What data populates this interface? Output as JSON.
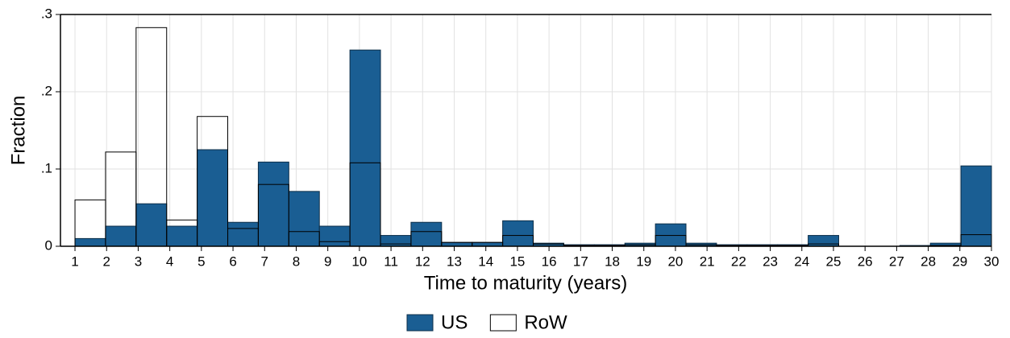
{
  "chart_data": {
    "type": "histogram",
    "xlabel": "Time to maturity (years)",
    "ylabel": "Fraction",
    "bins": [
      1,
      1.9667,
      2.9333,
      3.9,
      4.8667,
      5.8333,
      6.8,
      7.7667,
      8.7333,
      9.7,
      10.6667,
      11.6333,
      12.6,
      13.5667,
      14.5333,
      15.5,
      16.4667,
      17.4333,
      18.4,
      19.3667,
      20.3333,
      21.3,
      22.2667,
      23.2333,
      24.2,
      25.1667,
      26.1333,
      27.1,
      28.0667,
      29.0333,
      30
    ],
    "series": [
      {
        "name": "US",
        "color": "#1a5e93",
        "edgecolor": "#0d2f4a",
        "values": [
          0.01,
          0.026,
          0.055,
          0.026,
          0.125,
          0.031,
          0.109,
          0.071,
          0.026,
          0.254,
          0.014,
          0.031,
          0.005,
          0.005,
          0.033,
          0.004,
          0.002,
          0.002,
          0.004,
          0.029,
          0.004,
          0.002,
          0.002,
          0.002,
          0.014,
          0,
          0,
          0.001,
          0.004,
          0.104
        ]
      },
      {
        "name": "RoW",
        "color": "none",
        "edgecolor": "#000000",
        "values": [
          0.06,
          0.122,
          0.283,
          0.034,
          0.168,
          0.023,
          0.08,
          0.019,
          0.006,
          0.108,
          0.003,
          0.019,
          0.005,
          0.005,
          0.014,
          0.003,
          0.001,
          0.001,
          0.002,
          0.014,
          0.002,
          0.001,
          0.001,
          0.001,
          0.003,
          0,
          0,
          0,
          0.001,
          0.015
        ]
      }
    ],
    "xlim": [
      0.54,
      30
    ],
    "ylim": [
      0,
      0.3
    ],
    "xticks": [
      1,
      2,
      3,
      4,
      5,
      6,
      7,
      8,
      9,
      10,
      11,
      12,
      13,
      14,
      15,
      16,
      17,
      18,
      19,
      20,
      21,
      22,
      23,
      24,
      25,
      26,
      27,
      28,
      29,
      30
    ],
    "yticks": [
      0,
      {
        "value": 0.1,
        "label": ".1"
      },
      {
        "value": 0.2,
        "label": ".2"
      },
      {
        "value": 0.3,
        "label": ".3"
      }
    ],
    "grid": true,
    "legend": "bottom"
  }
}
